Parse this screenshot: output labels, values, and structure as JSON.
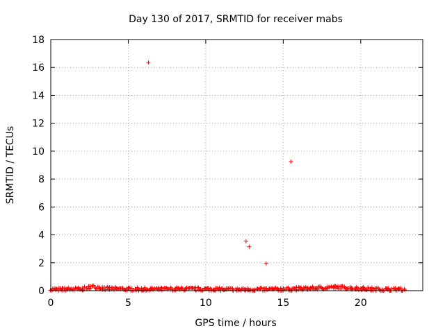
{
  "chart_data": {
    "type": "scatter",
    "title": "Day 130 of 2017, SRMTID for receiver mabs",
    "xlabel": "GPS time / hours",
    "ylabel": "SRMTID / TECUs",
    "xlim": [
      0,
      24
    ],
    "ylim": [
      0,
      18
    ],
    "xticks": [
      0,
      5,
      10,
      15,
      20
    ],
    "yticks": [
      0,
      2,
      4,
      6,
      8,
      10,
      12,
      14,
      16,
      18
    ],
    "grid": true,
    "marker": "+",
    "color": "#ff0000",
    "series": [
      {
        "name": "SRMTID",
        "outliers": [
          {
            "x": 6.3,
            "y": 16.35
          },
          {
            "x": 12.6,
            "y": 3.55
          },
          {
            "x": 12.8,
            "y": 3.15
          },
          {
            "x": 13.9,
            "y": 1.95
          },
          {
            "x": 15.5,
            "y": 9.25
          }
        ],
        "baseline": {
          "x_start": 0.0,
          "x_end": 22.8,
          "step": 0.1,
          "y_profile_x": [
            0,
            2,
            2.7,
            3.5,
            6,
            8,
            10,
            12,
            15,
            17,
            18.5,
            19.5,
            21,
            22.8
          ],
          "y_profile_mid": [
            0.08,
            0.12,
            0.3,
            0.15,
            0.1,
            0.12,
            0.12,
            0.08,
            0.1,
            0.18,
            0.25,
            0.18,
            0.1,
            0.08
          ],
          "spread": 0.12
        }
      }
    ]
  }
}
